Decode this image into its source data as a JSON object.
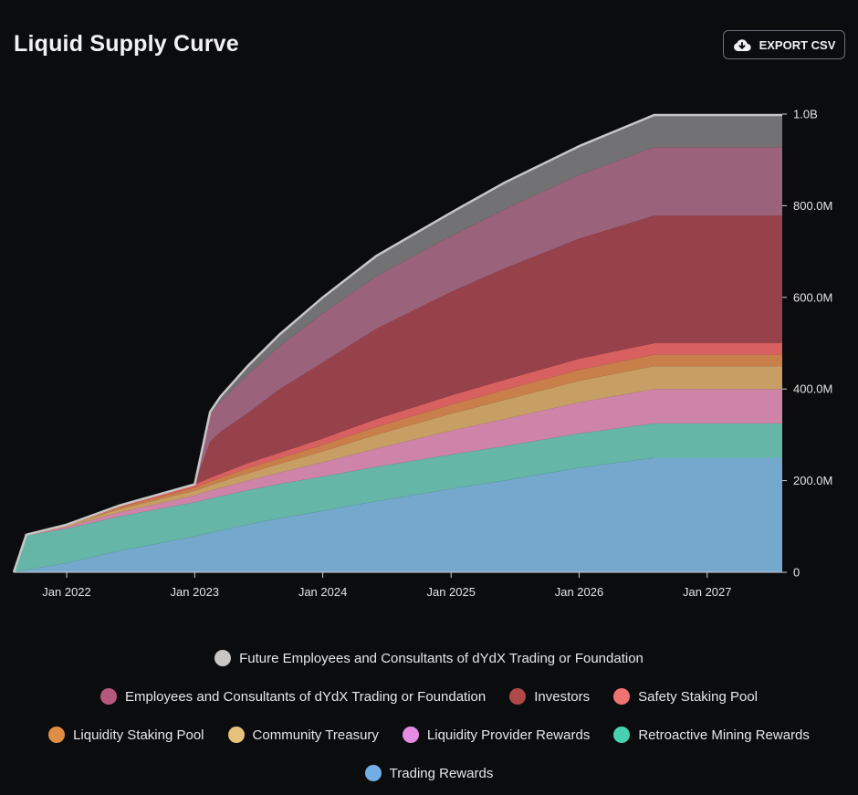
{
  "header": {
    "title": "Liquid Supply Curve",
    "export_label": "EXPORT CSV",
    "export_icon": "cloud-download-icon"
  },
  "chart_data": {
    "type": "area",
    "stacked": true,
    "title": "Liquid Supply Curve",
    "x_tick_labels": [
      "Jan 2022",
      "Jan 2023",
      "Jan 2024",
      "Jan 2025",
      "Jan 2026",
      "Jan 2027"
    ],
    "y_tick_labels": [
      "0",
      "200.0M",
      "400.0M",
      "600.0M",
      "800.0M",
      "1.0B"
    ],
    "y_axis_position": "right",
    "ylim": [
      0,
      1000000000
    ],
    "xlim": [
      "2021-08-03",
      "2027-08-03"
    ],
    "grid": false,
    "legend_position": "bottom",
    "x": [
      "2021-08-03",
      "2021-09-08",
      "2022-01-01",
      "2022-06-01",
      "2023-01-01",
      "2023-02-14",
      "2023-03-15",
      "2023-06-01",
      "2023-09-01",
      "2024-01-01",
      "2024-06-01",
      "2025-01-01",
      "2025-06-01",
      "2026-01-01",
      "2026-08-03",
      "2027-08-03"
    ],
    "series": [
      {
        "name": "Trading Rewards",
        "color": "#7eb7dd",
        "values": [
          0,
          5000000,
          20000000,
          47000000,
          78000000,
          86000000,
          91000000,
          104000000,
          118000000,
          134000000,
          155000000,
          182000000,
          200000000,
          228000000,
          250000000,
          250000000
        ]
      },
      {
        "name": "Retroactive Mining Rewards",
        "color": "#6ec5b4",
        "values": [
          0,
          75000000,
          75000000,
          75000000,
          75000000,
          75000000,
          75000000,
          75000000,
          75000000,
          75000000,
          75000000,
          75000000,
          75000000,
          75000000,
          75000000,
          75000000
        ]
      },
      {
        "name": "Liquidity Provider Rewards",
        "color": "#e08fb5",
        "values": [
          0,
          1000000,
          4000000,
          9000000,
          15000000,
          17000000,
          18000000,
          21000000,
          25000000,
          31000000,
          40000000,
          52000000,
          59000000,
          68000000,
          75000000,
          75000000
        ]
      },
      {
        "name": "Community Treasury",
        "color": "#d8ac6d",
        "values": [
          0,
          1000000,
          3000000,
          7000000,
          10000000,
          12000000,
          13000000,
          16000000,
          19000000,
          24000000,
          30000000,
          37000000,
          42000000,
          47000000,
          50000000,
          50000000
        ]
      },
      {
        "name": "Liquidity Staking Pool",
        "color": "#d98a4f",
        "values": [
          0,
          0,
          1000000,
          4000000,
          7000000,
          8000000,
          9000000,
          11000000,
          12000000,
          14000000,
          17000000,
          20000000,
          22000000,
          24000000,
          25000000,
          25000000
        ]
      },
      {
        "name": "Safety Staking Pool",
        "color": "#ec6868",
        "values": [
          0,
          0,
          1000000,
          4000000,
          7000000,
          8000000,
          9000000,
          11000000,
          12000000,
          14000000,
          17000000,
          20000000,
          22000000,
          24000000,
          25000000,
          25000000
        ]
      },
      {
        "name": "Investors",
        "color": "#a4474f",
        "values": [
          0,
          0,
          0,
          0,
          0,
          79000000,
          91000000,
          109000000,
          139000000,
          166000000,
          197000000,
          226000000,
          243000000,
          262000000,
          278000000,
          278000000
        ]
      },
      {
        "name": "Employees and Consultants of dYdX Trading or Foundation",
        "color": "#a86a85",
        "values": [
          0,
          0,
          0,
          0,
          0,
          60000000,
          67000000,
          84000000,
          94000000,
          107000000,
          115000000,
          122000000,
          129000000,
          139000000,
          150000000,
          150000000
        ]
      },
      {
        "name": "Future Employees and Consultants of dYdX Trading or Foundation",
        "color": "#7c7c7d",
        "values": [
          0,
          0,
          0,
          0,
          0,
          5000000,
          10000000,
          19000000,
          26000000,
          35000000,
          44000000,
          51000000,
          58000000,
          63000000,
          70000000,
          70000000
        ]
      }
    ]
  },
  "legend": {
    "rows": [
      [
        {
          "label": "Future Employees and Consultants of dYdX Trading or Foundation",
          "color": "#c9c6c6"
        }
      ],
      [
        {
          "label": "Employees and Consultants of dYdX Trading or Foundation",
          "color": "#b5587e"
        },
        {
          "label": "Investors",
          "color": "#b04949"
        },
        {
          "label": "Safety Staking Pool",
          "color": "#f07272"
        }
      ],
      [
        {
          "label": "Liquidity Staking Pool",
          "color": "#e08d44"
        },
        {
          "label": "Community Treasury",
          "color": "#e6c27d"
        },
        {
          "label": "Liquidity Provider Rewards",
          "color": "#e58be2"
        },
        {
          "label": "Retroactive Mining Rewards",
          "color": "#48d1b1"
        }
      ],
      [
        {
          "label": "Trading Rewards",
          "color": "#74aee6"
        }
      ]
    ]
  }
}
